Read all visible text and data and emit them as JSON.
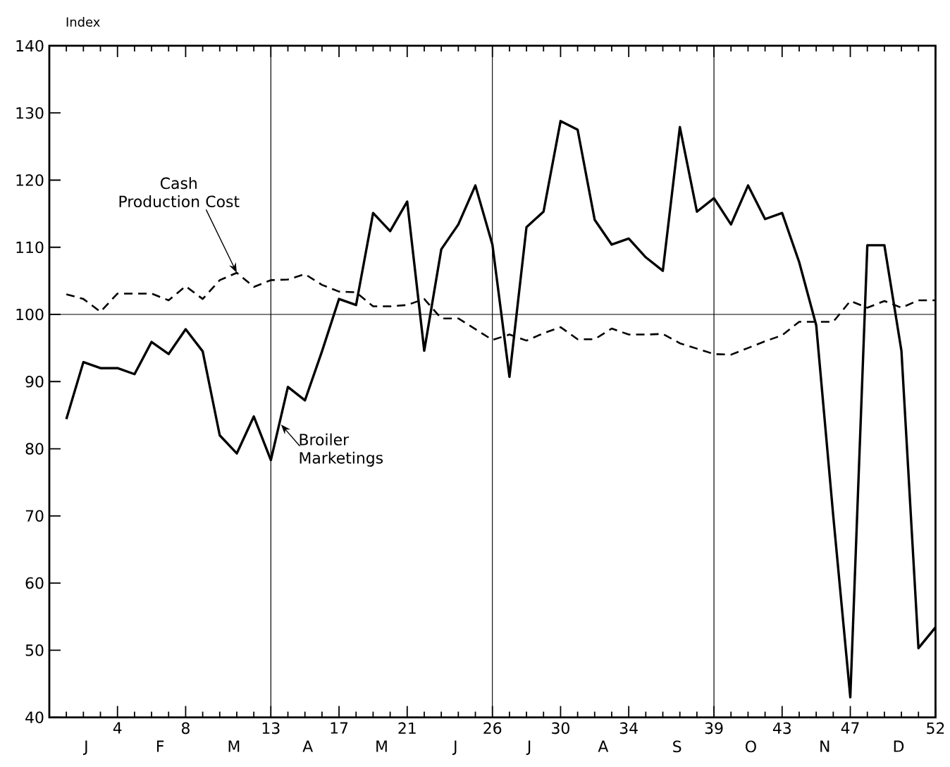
{
  "chart_data": {
    "type": "line",
    "ylabel": "Index",
    "xlim": [
      0,
      52
    ],
    "ylim": [
      40,
      140
    ],
    "yticks": [
      40,
      50,
      60,
      70,
      80,
      90,
      100,
      110,
      120,
      130,
      140
    ],
    "xticks": [
      4,
      8,
      13,
      17,
      21,
      26,
      30,
      34,
      39,
      43,
      47,
      52,
      {
        "value": 1,
        "label": null
      },
      {
        "value": 2,
        "label": null
      },
      {
        "value": 3,
        "label": null
      },
      {
        "value": 5,
        "label": null
      },
      {
        "value": 6,
        "label": null
      },
      {
        "value": 7,
        "label": null
      },
      {
        "value": 9,
        "label": null
      },
      {
        "value": 10,
        "label": null
      },
      {
        "value": 11,
        "label": null
      },
      {
        "value": 12,
        "label": null
      },
      {
        "value": 14,
        "label": null
      },
      {
        "value": 15,
        "label": null
      },
      {
        "value": 16,
        "label": null
      },
      {
        "value": 18,
        "label": null
      },
      {
        "value": 19,
        "label": null
      },
      {
        "value": 20,
        "label": null
      },
      {
        "value": 22,
        "label": null
      },
      {
        "value": 23,
        "label": null
      },
      {
        "value": 24,
        "label": null
      },
      {
        "value": 25,
        "label": null
      },
      {
        "value": 27,
        "label": null
      },
      {
        "value": 28,
        "label": null
      },
      {
        "value": 29,
        "label": null
      },
      {
        "value": 31,
        "label": null
      },
      {
        "value": 32,
        "label": null
      },
      {
        "value": 33,
        "label": null
      },
      {
        "value": 35,
        "label": null
      },
      {
        "value": 36,
        "label": null
      },
      {
        "value": 37,
        "label": null
      },
      {
        "value": 38,
        "label": null
      },
      {
        "value": 40,
        "label": null
      },
      {
        "value": 41,
        "label": null
      },
      {
        "value": 42,
        "label": null
      },
      {
        "value": 44,
        "label": null
      },
      {
        "value": 45,
        "label": null
      },
      {
        "value": 46,
        "label": null
      },
      {
        "value": 48,
        "label": null
      },
      {
        "value": 49,
        "label": null
      },
      {
        "value": 50,
        "label": null
      },
      {
        "value": 51,
        "label": null
      }
    ],
    "x": [
      1,
      2,
      3,
      4,
      5,
      6,
      7,
      8,
      9,
      10,
      11,
      12,
      13,
      14,
      15,
      16,
      17,
      18,
      19,
      20,
      21,
      22,
      23,
      24,
      25,
      26,
      27,
      28,
      29,
      30,
      31,
      32,
      33,
      34,
      35,
      36,
      37,
      38,
      39,
      40,
      41,
      42,
      43,
      44,
      45,
      46,
      47,
      48,
      49,
      50,
      51,
      52
    ],
    "series": [
      {
        "color": "#000000",
        "line_style": "solid",
        "values": [
          84.4,
          92.9,
          92.0,
          92.0,
          91.1,
          95.9,
          94.1,
          97.8,
          94.5,
          82.0,
          79.3,
          84.8,
          78.3,
          89.2,
          87.2,
          94.5,
          102.3,
          101.4,
          115.1,
          112.4,
          116.8,
          94.6,
          109.7,
          113.4,
          119.2,
          110.4,
          90.7,
          113.0,
          115.3,
          128.8,
          127.5,
          114.1,
          110.4,
          111.3,
          108.5,
          106.5,
          127.9,
          115.3,
          117.3,
          113.4,
          119.2,
          114.2,
          115.1,
          107.8,
          98.4,
          70.0,
          43.0,
          110.3,
          110.3,
          94.6,
          50.3,
          53.4
        ]
      },
      {
        "color": "#000000",
        "line_style": "dashed",
        "values": [
          103.0,
          102.3,
          100.4,
          103.1,
          103.1,
          103.1,
          102.1,
          104.2,
          102.3,
          105.1,
          106.2,
          104.1,
          105.1,
          105.2,
          106.0,
          104.4,
          103.4,
          103.3,
          101.2,
          101.2,
          101.4,
          102.3,
          99.4,
          99.4,
          97.8,
          96.2,
          97.0,
          96.1,
          97.2,
          98.1,
          96.3,
          96.3,
          97.9,
          97.0,
          97.0,
          97.1,
          95.7,
          94.9,
          94.1,
          94.0,
          95.0,
          96.0,
          96.9,
          98.9,
          98.9,
          98.9,
          102.0,
          101.0,
          102.0,
          101.0,
          102.1,
          102.1
        ]
      }
    ],
    "ref_lines": [
      {
        "axis": "x",
        "value": 13
      },
      {
        "axis": "x",
        "value": 26
      },
      {
        "axis": "x",
        "value": 39
      },
      {
        "axis": "y",
        "value": 100
      }
    ],
    "annotations": [
      {
        "text": "Cash Production Cost",
        "x": 11,
        "y": 106.2
      },
      {
        "text": "Broiler Marketings",
        "x": 13.6,
        "y": 83.6
      },
      "J",
      "F",
      "M",
      "A",
      "M",
      "J",
      "J",
      "A",
      "S",
      "O",
      "N",
      "D"
    ],
    "marker": "none",
    "grid": false
  }
}
